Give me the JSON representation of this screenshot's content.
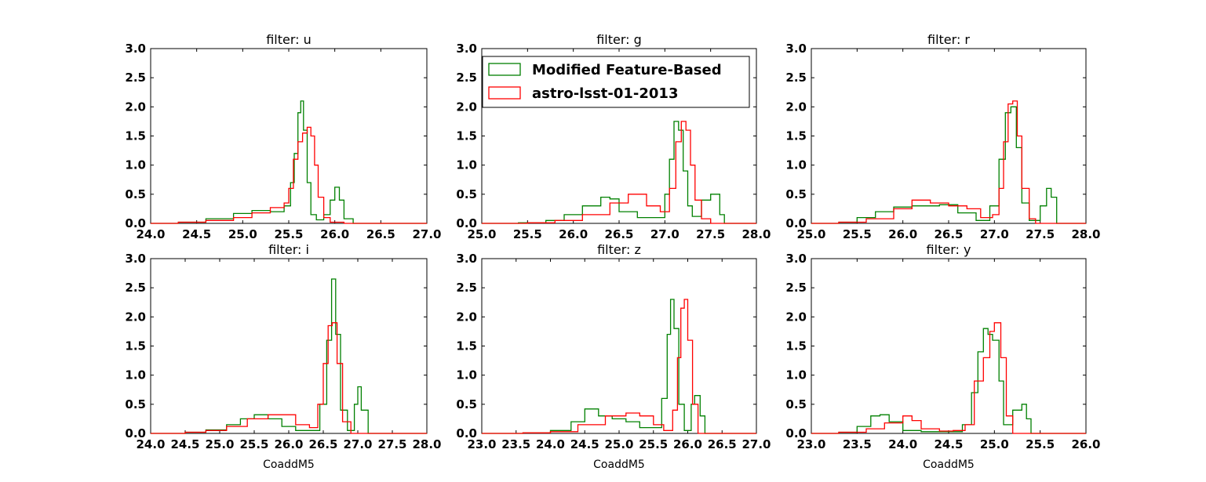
{
  "chart_data": [
    {
      "type": "histogram-step",
      "title": "filter: u",
      "xlabel": "",
      "xlim": [
        24.0,
        27.0
      ],
      "ylim": [
        0.0,
        3.0
      ],
      "xticks": [
        "24.0",
        "24.5",
        "25.0",
        "25.5",
        "26.0",
        "26.5",
        "27.0"
      ],
      "yticks": [
        "0.0",
        "0.5",
        "1.0",
        "1.5",
        "2.0",
        "2.5",
        "3.0"
      ],
      "series": [
        {
          "name": "Modified Feature-Based",
          "color": "#008000",
          "x": [
            24.0,
            24.3,
            24.6,
            24.9,
            25.1,
            25.3,
            25.45,
            25.52,
            25.56,
            25.6,
            25.63,
            25.66,
            25.7,
            25.74,
            25.8,
            25.88,
            25.95,
            26.0,
            26.05,
            26.1,
            26.2,
            27.0
          ],
          "y": [
            0.0,
            0.02,
            0.08,
            0.17,
            0.22,
            0.2,
            0.3,
            0.7,
            1.2,
            1.9,
            2.1,
            1.6,
            0.7,
            0.15,
            0.06,
            0.15,
            0.4,
            0.62,
            0.4,
            0.08,
            0.0,
            0.0
          ]
        },
        {
          "name": "astro-lsst-01-2013",
          "color": "#ff0000",
          "x": [
            24.0,
            24.3,
            24.6,
            24.9,
            25.1,
            25.3,
            25.45,
            25.5,
            25.55,
            25.6,
            25.65,
            25.7,
            25.74,
            25.78,
            25.82,
            25.88,
            25.95,
            26.1,
            27.0
          ],
          "y": [
            0.0,
            0.02,
            0.05,
            0.1,
            0.18,
            0.27,
            0.35,
            0.6,
            1.1,
            1.4,
            1.55,
            1.65,
            1.5,
            1.0,
            0.45,
            0.1,
            0.02,
            0.0,
            0.0
          ]
        }
      ]
    },
    {
      "type": "histogram-step",
      "title": "filter: g",
      "xlabel": "",
      "xlim": [
        25.0,
        28.0
      ],
      "ylim": [
        0.0,
        3.0
      ],
      "xticks": [
        "25.0",
        "25.5",
        "26.0",
        "26.5",
        "27.0",
        "27.5",
        "28.0"
      ],
      "yticks": [
        "0.0",
        "0.5",
        "1.0",
        "1.5",
        "2.0",
        "2.5",
        "3.0"
      ],
      "legend": {
        "position": "top-left",
        "entries": [
          "Modified Feature-Based",
          "astro-lsst-01-2013"
        ]
      },
      "series": [
        {
          "name": "Modified Feature-Based",
          "color": "#008000",
          "x": [
            25.0,
            25.4,
            25.7,
            25.9,
            26.1,
            26.3,
            26.4,
            26.5,
            26.7,
            26.9,
            27.0,
            27.05,
            27.1,
            27.15,
            27.2,
            27.25,
            27.3,
            27.4,
            27.5,
            27.6,
            27.65,
            28.0
          ],
          "y": [
            0.0,
            0.01,
            0.05,
            0.15,
            0.3,
            0.45,
            0.42,
            0.2,
            0.1,
            0.1,
            0.5,
            1.1,
            1.75,
            1.6,
            0.9,
            0.3,
            0.12,
            0.4,
            0.5,
            0.15,
            0.0,
            0.0
          ]
        },
        {
          "name": "astro-lsst-01-2013",
          "color": "#ff0000",
          "x": [
            25.0,
            25.5,
            25.8,
            26.1,
            26.4,
            26.6,
            26.8,
            26.95,
            27.05,
            27.12,
            27.18,
            27.23,
            27.28,
            27.33,
            27.4,
            27.5,
            28.0
          ],
          "y": [
            0.0,
            0.01,
            0.05,
            0.15,
            0.35,
            0.5,
            0.3,
            0.2,
            0.6,
            1.4,
            1.75,
            1.6,
            1.0,
            0.4,
            0.08,
            0.0,
            0.0
          ]
        }
      ]
    },
    {
      "type": "histogram-step",
      "title": "filter: r",
      "xlabel": "",
      "xlim": [
        25.0,
        28.0
      ],
      "ylim": [
        0.0,
        3.0
      ],
      "xticks": [
        "25.0",
        "25.5",
        "26.0",
        "26.5",
        "27.0",
        "27.5",
        "28.0"
      ],
      "yticks": [
        "0.0",
        "0.5",
        "1.0",
        "1.5",
        "2.0",
        "2.5",
        "3.0"
      ],
      "series": [
        {
          "name": "Modified Feature-Based",
          "color": "#008000",
          "x": [
            25.0,
            25.3,
            25.5,
            25.7,
            25.9,
            26.1,
            26.3,
            26.4,
            26.6,
            26.8,
            26.95,
            27.05,
            27.12,
            27.18,
            27.24,
            27.3,
            27.38,
            27.5,
            27.57,
            27.62,
            27.68,
            28.0
          ],
          "y": [
            0.0,
            0.02,
            0.1,
            0.2,
            0.28,
            0.3,
            0.3,
            0.32,
            0.18,
            0.05,
            0.3,
            1.1,
            1.9,
            2.0,
            1.3,
            0.35,
            0.05,
            0.3,
            0.6,
            0.45,
            0.0,
            0.0
          ]
        },
        {
          "name": "astro-lsst-01-2013",
          "color": "#ff0000",
          "x": [
            25.0,
            25.3,
            25.6,
            25.9,
            26.1,
            26.3,
            26.5,
            26.7,
            26.85,
            26.98,
            27.05,
            27.1,
            27.15,
            27.2,
            27.25,
            27.3,
            27.38,
            27.45,
            28.0
          ],
          "y": [
            0.0,
            0.02,
            0.08,
            0.25,
            0.4,
            0.35,
            0.3,
            0.25,
            0.1,
            0.15,
            0.6,
            1.4,
            2.05,
            2.1,
            1.5,
            0.6,
            0.08,
            0.0,
            0.0
          ]
        }
      ]
    },
    {
      "type": "histogram-step",
      "title": "filter: i",
      "xlabel": "CoaddM5",
      "xlim": [
        24.0,
        28.0
      ],
      "ylim": [
        0.0,
        3.0
      ],
      "xticks": [
        "24.0",
        "24.5",
        "25.0",
        "25.5",
        "26.0",
        "26.5",
        "27.0",
        "27.5",
        "28.0"
      ],
      "yticks": [
        "0.0",
        "0.5",
        "1.0",
        "1.5",
        "2.0",
        "2.5",
        "3.0"
      ],
      "series": [
        {
          "name": "Modified Feature-Based",
          "color": "#008000",
          "x": [
            24.0,
            24.5,
            24.8,
            25.1,
            25.3,
            25.5,
            25.7,
            25.9,
            26.1,
            26.3,
            26.45,
            26.55,
            26.62,
            26.68,
            26.75,
            26.85,
            26.95,
            27.0,
            27.05,
            27.15,
            28.0
          ],
          "y": [
            0.0,
            0.02,
            0.06,
            0.15,
            0.25,
            0.32,
            0.25,
            0.12,
            0.05,
            0.05,
            0.5,
            1.6,
            2.65,
            1.7,
            0.4,
            0.05,
            0.5,
            0.8,
            0.4,
            0.0,
            0.0
          ]
        },
        {
          "name": "astro-lsst-01-2013",
          "color": "#ff0000",
          "x": [
            24.0,
            24.5,
            24.8,
            25.1,
            25.4,
            25.7,
            25.9,
            26.1,
            26.3,
            26.42,
            26.5,
            26.57,
            26.63,
            26.7,
            26.78,
            26.9,
            28.0
          ],
          "y": [
            0.0,
            0.02,
            0.05,
            0.12,
            0.25,
            0.32,
            0.32,
            0.15,
            0.1,
            0.5,
            1.2,
            1.85,
            1.9,
            1.2,
            0.2,
            0.0,
            0.0
          ]
        }
      ]
    },
    {
      "type": "histogram-step",
      "title": "filter: z",
      "xlabel": "CoaddM5",
      "xlim": [
        23.0,
        27.0
      ],
      "ylim": [
        0.0,
        3.0
      ],
      "xticks": [
        "23.0",
        "23.5",
        "24.0",
        "24.5",
        "25.0",
        "25.5",
        "26.0",
        "26.5",
        "27.0"
      ],
      "yticks": [
        "0.0",
        "0.5",
        "1.0",
        "1.5",
        "2.0",
        "2.5",
        "3.0"
      ],
      "series": [
        {
          "name": "Modified Feature-Based",
          "color": "#008000",
          "x": [
            23.0,
            23.6,
            24.0,
            24.3,
            24.5,
            24.7,
            24.9,
            25.1,
            25.3,
            25.5,
            25.62,
            25.7,
            25.75,
            25.8,
            25.87,
            25.95,
            26.05,
            26.1,
            26.18,
            26.25,
            27.0
          ],
          "y": [
            0.0,
            0.01,
            0.05,
            0.2,
            0.42,
            0.3,
            0.25,
            0.2,
            0.1,
            0.1,
            0.6,
            1.7,
            2.3,
            1.8,
            0.5,
            0.05,
            0.5,
            0.65,
            0.3,
            0.0,
            0.0
          ]
        },
        {
          "name": "astro-lsst-01-2013",
          "color": "#ff0000",
          "x": [
            23.0,
            23.6,
            24.0,
            24.4,
            24.8,
            25.1,
            25.3,
            25.5,
            25.65,
            25.78,
            25.85,
            25.9,
            25.95,
            26.0,
            26.07,
            26.15,
            27.0
          ],
          "y": [
            0.0,
            0.01,
            0.03,
            0.15,
            0.3,
            0.35,
            0.3,
            0.15,
            0.05,
            0.4,
            1.3,
            2.15,
            2.3,
            1.6,
            0.5,
            0.0,
            0.0
          ]
        }
      ]
    },
    {
      "type": "histogram-step",
      "title": "filter: y",
      "xlabel": "CoaddM5",
      "xlim": [
        23.0,
        26.0
      ],
      "ylim": [
        0.0,
        3.0
      ],
      "xticks": [
        "23.0",
        "23.5",
        "24.0",
        "24.5",
        "25.0",
        "25.5",
        "26.0"
      ],
      "yticks": [
        "0.0",
        "0.5",
        "1.0",
        "1.5",
        "2.0",
        "2.5",
        "3.0"
      ],
      "series": [
        {
          "name": "Modified Feature-Based",
          "color": "#008000",
          "x": [
            23.0,
            23.3,
            23.5,
            23.65,
            23.75,
            23.85,
            24.0,
            24.2,
            24.5,
            24.65,
            24.75,
            24.82,
            24.88,
            24.93,
            24.98,
            25.05,
            25.1,
            25.2,
            25.3,
            25.35,
            25.4,
            26.0
          ],
          "y": [
            0.0,
            0.02,
            0.12,
            0.3,
            0.32,
            0.2,
            0.05,
            0.03,
            0.03,
            0.15,
            0.7,
            1.4,
            1.8,
            1.7,
            1.6,
            0.9,
            0.15,
            0.4,
            0.5,
            0.25,
            0.0,
            0.0
          ]
        },
        {
          "name": "astro-lsst-01-2013",
          "color": "#ff0000",
          "x": [
            23.0,
            23.3,
            23.6,
            23.8,
            24.0,
            24.1,
            24.2,
            24.4,
            24.55,
            24.68,
            24.78,
            24.88,
            24.95,
            25.0,
            25.07,
            25.13,
            25.2,
            26.0
          ],
          "y": [
            0.0,
            0.02,
            0.08,
            0.18,
            0.3,
            0.22,
            0.08,
            0.04,
            0.05,
            0.15,
            0.9,
            1.3,
            1.75,
            1.9,
            1.3,
            0.3,
            0.0,
            0.0
          ]
        }
      ]
    }
  ]
}
